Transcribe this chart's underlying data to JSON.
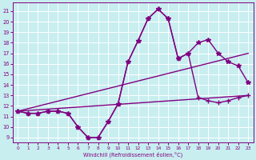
{
  "xlabel": "Windchill (Refroidissement éolien,°C)",
  "background_color": "#c8eef0",
  "grid_color": "#ffffff",
  "line_color": "#800080",
  "x_ticks": [
    0,
    1,
    2,
    3,
    4,
    5,
    6,
    7,
    8,
    9,
    10,
    11,
    12,
    13,
    14,
    15,
    16,
    17,
    18,
    19,
    20,
    21,
    22,
    23
  ],
  "y_ticks": [
    9,
    10,
    11,
    12,
    13,
    14,
    15,
    16,
    17,
    18,
    19,
    20,
    21
  ],
  "ylim": [
    8.5,
    21.8
  ],
  "xlim": [
    -0.5,
    23.5
  ],
  "series": [
    {
      "x": [
        0,
        1,
        2,
        3,
        4,
        5,
        6,
        7,
        8,
        9,
        10,
        11,
        12,
        13,
        14,
        15,
        16,
        17,
        18,
        19,
        20,
        21,
        22,
        23
      ],
      "y": [
        11.5,
        11.3,
        11.3,
        11.5,
        11.5,
        11.3,
        10.0,
        9.0,
        9.0,
        10.5,
        12.2,
        16.2,
        18.2,
        20.3,
        21.2,
        20.3,
        16.5,
        17.0,
        18.0,
        18.3,
        17.0,
        16.2,
        15.8,
        14.2
      ],
      "marker": "*",
      "markersize": 4,
      "linewidth": 1.0
    },
    {
      "x": [
        0,
        1,
        2,
        3,
        4,
        5,
        6,
        7,
        8,
        9,
        10,
        11,
        12,
        13,
        14,
        15,
        16,
        17,
        18,
        19,
        20,
        21,
        22,
        23
      ],
      "y": [
        11.5,
        11.3,
        11.3,
        11.5,
        11.5,
        11.3,
        10.0,
        9.0,
        9.0,
        10.5,
        12.2,
        16.2,
        18.2,
        20.3,
        21.2,
        20.3,
        16.5,
        17.0,
        12.8,
        12.5,
        12.3,
        12.5,
        12.8,
        13.0
      ],
      "marker": "+",
      "markersize": 4,
      "linewidth": 1.0
    },
    {
      "x": [
        0,
        23
      ],
      "y": [
        11.5,
        17.0
      ],
      "marker": null,
      "markersize": 0,
      "linewidth": 1.0
    },
    {
      "x": [
        0,
        23
      ],
      "y": [
        11.5,
        13.0
      ],
      "marker": null,
      "markersize": 0,
      "linewidth": 1.0
    }
  ]
}
